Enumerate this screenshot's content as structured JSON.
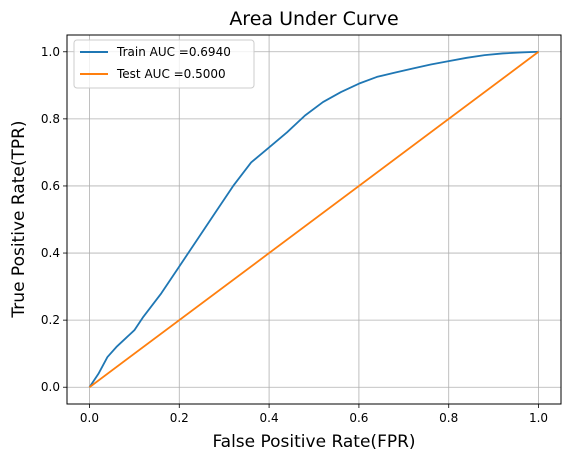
{
  "chart_data": {
    "type": "line",
    "title": "Area Under Curve",
    "xlabel": "False Positive Rate(FPR)",
    "ylabel": "True Positive Rate(TPR)",
    "xlim": [
      -0.05,
      1.05
    ],
    "ylim": [
      -0.05,
      1.05
    ],
    "xticks": [
      0.0,
      0.2,
      0.4,
      0.6,
      0.8,
      1.0
    ],
    "yticks": [
      0.0,
      0.2,
      0.4,
      0.6,
      0.8,
      1.0
    ],
    "xtick_labels": [
      "0.0",
      "0.2",
      "0.4",
      "0.6",
      "0.8",
      "1.0"
    ],
    "ytick_labels": [
      "0.0",
      "0.2",
      "0.4",
      "0.6",
      "0.8",
      "1.0"
    ],
    "grid": true,
    "legend_position": "top-left",
    "series": [
      {
        "name": "Train AUC =0.6940",
        "color": "#1f77b4",
        "x": [
          0.0,
          0.02,
          0.04,
          0.06,
          0.08,
          0.1,
          0.12,
          0.14,
          0.16,
          0.18,
          0.2,
          0.24,
          0.28,
          0.32,
          0.36,
          0.4,
          0.44,
          0.48,
          0.52,
          0.56,
          0.6,
          0.64,
          0.68,
          0.72,
          0.76,
          0.8,
          0.84,
          0.88,
          0.92,
          0.96,
          1.0
        ],
        "y": [
          0.0,
          0.04,
          0.09,
          0.12,
          0.145,
          0.17,
          0.21,
          0.245,
          0.28,
          0.32,
          0.36,
          0.44,
          0.52,
          0.6,
          0.67,
          0.715,
          0.76,
          0.81,
          0.85,
          0.88,
          0.905,
          0.925,
          0.938,
          0.95,
          0.962,
          0.972,
          0.982,
          0.99,
          0.995,
          0.998,
          1.0
        ]
      },
      {
        "name": "Test AUC =0.5000",
        "color": "#ff7f0e",
        "x": [
          0.0,
          1.0
        ],
        "y": [
          0.0,
          1.0
        ]
      }
    ]
  }
}
